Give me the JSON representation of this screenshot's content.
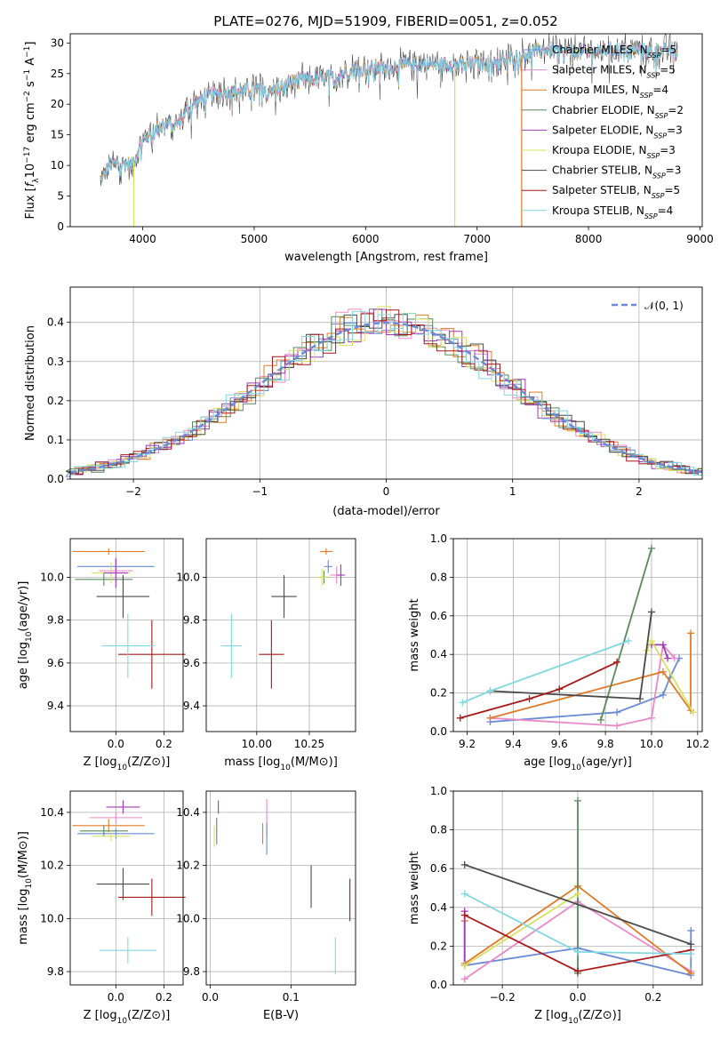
{
  "title": "PLATE=0276, MJD=51909, FIBERID=0051, z=0.052",
  "colors": {
    "Chabrier MILES": "#6a8ad8",
    "Salpeter MILES": "#e98ac8",
    "Kroupa MILES": "#e07b28",
    "Chabrier ELODIE": "#5a8a5a",
    "Salpeter ELODIE": "#a03ab8",
    "Kroupa ELODIE": "#d8e060",
    "Chabrier STELIB": "#4a4a4a",
    "Salpeter STELIB": "#a81818",
    "Kroupa STELIB": "#80d8e0"
  },
  "chart_data": [
    {
      "id": "spectrum",
      "type": "line",
      "xlabel": "wavelength [Angstrom, rest frame]",
      "ylabel": "Flux [f_λ10^-17 erg cm^-2 s^-1 A^-1]",
      "xlim": [
        3350,
        9020
      ],
      "ylim": [
        0,
        31.5
      ],
      "xticks": [
        "4000",
        "5000",
        "6000",
        "7000",
        "8000",
        "9000"
      ],
      "yticks": [
        "0",
        "5",
        "10",
        "15",
        "20",
        "25",
        "30"
      ],
      "x_range": [
        3620,
        8800
      ],
      "legend_position": "top-right",
      "continuum": [
        [
          3620,
          7.5
        ],
        [
          3700,
          10
        ],
        [
          3800,
          10.5
        ],
        [
          3900,
          10
        ],
        [
          4000,
          14
        ],
        [
          4100,
          15.5
        ],
        [
          4200,
          17
        ],
        [
          4300,
          16.5
        ],
        [
          4400,
          19
        ],
        [
          4500,
          20.5
        ],
        [
          4600,
          21.5
        ],
        [
          4800,
          22
        ],
        [
          5000,
          22.5
        ],
        [
          5200,
          22.5
        ],
        [
          5400,
          24
        ],
        [
          5600,
          24
        ],
        [
          5800,
          25
        ],
        [
          6000,
          26
        ],
        [
          6200,
          26
        ],
        [
          6400,
          26.5
        ],
        [
          6600,
          26.5
        ],
        [
          6800,
          26.5
        ],
        [
          7000,
          26.5
        ],
        [
          7200,
          27
        ],
        [
          7400,
          28
        ],
        [
          7600,
          29
        ],
        [
          7800,
          28.5
        ],
        [
          8000,
          28.5
        ],
        [
          8200,
          29
        ],
        [
          8400,
          29
        ],
        [
          8600,
          28.5
        ],
        [
          8800,
          29
        ]
      ],
      "legend": [
        "Chabrier MILES, N_SSP=5",
        "Salpeter MILES, N_SSP=5",
        "Kroupa MILES, N_SSP=4",
        "Chabrier ELODIE, N_SSP=2",
        "Salpeter ELODIE, N_SSP=3",
        "Kroupa ELODIE, N_SSP=3",
        "Chabrier STELIB, N_SSP=3",
        "Salpeter STELIB, N_SSP=5",
        "Kroupa STELIB, N_SSP=4"
      ],
      "legend_prefix": [
        "Chabrier MILES, N",
        "Salpeter MILES, N",
        "Kroupa MILES, N",
        "Chabrier ELODIE, N",
        "Salpeter ELODIE, N",
        "Kroupa ELODIE, N",
        "Chabrier STELIB, N",
        "Salpeter STELIB, N",
        "Kroupa STELIB, N"
      ],
      "legend_sub": "SSP",
      "legend_suffix": [
        "=5",
        "=5",
        "=4",
        "=2",
        "=3",
        "=3",
        "=3",
        "=5",
        "=4"
      ],
      "vlines": [
        {
          "x": 3920,
          "series": "Kroupa ELODIE"
        },
        {
          "x": 6800,
          "series": "Kroupa ELODIE"
        },
        {
          "x": 7400,
          "series": "Kroupa MILES"
        }
      ]
    },
    {
      "id": "residuals",
      "type": "step",
      "xlabel": "(data-model)/error",
      "ylabel": "Normed distribution",
      "xlim": [
        -2.5,
        2.5
      ],
      "ylim": [
        0,
        0.49
      ],
      "xticks": [
        "-2",
        "-1",
        "0",
        "1",
        "2"
      ],
      "yticks": [
        "0.0",
        "0.1",
        "0.2",
        "0.3",
        "0.4"
      ],
      "legend": "𝒩(0, 1)",
      "legend_position": "top-right",
      "bin_width": 0.1,
      "grid": true
    },
    {
      "id": "age-vs-Z",
      "type": "errorbar",
      "xlabel": "Z [log10(Z/Z⊙)]",
      "ylabel": "age  [log10(age/yr)]",
      "xlim": [
        -0.19,
        0.28
      ],
      "ylim": [
        9.28,
        10.18
      ],
      "xticks": [
        "0.0",
        "0.2"
      ],
      "yticks": [
        "9.4",
        "9.6",
        "9.8",
        "10.0"
      ],
      "points": [
        {
          "series": "Kroupa MILES",
          "x": -0.03,
          "y": 10.12,
          "xerr": 0.15,
          "yerr": 0.015
        },
        {
          "series": "Chabrier MILES",
          "x": 0.0,
          "y": 10.05,
          "xerr": 0.16,
          "yerr": 0.03
        },
        {
          "series": "Salpeter MILES",
          "x": 0.0,
          "y": 10.03,
          "xerr": 0.07,
          "yerr": 0.05
        },
        {
          "series": "Chabrier ELODIE",
          "x": -0.05,
          "y": 9.99,
          "xerr": 0.12,
          "yerr": 0.03
        },
        {
          "series": "Kroupa ELODIE",
          "x": -0.02,
          "y": 10.02,
          "xerr": 0.08,
          "yerr": 0.05
        },
        {
          "series": "Salpeter ELODIE",
          "x": 0.0,
          "y": 10.02,
          "xerr": 0.05,
          "yerr": 0.07
        },
        {
          "series": "Chabrier STELIB",
          "x": 0.03,
          "y": 9.91,
          "xerr": 0.11,
          "yerr": 0.1
        },
        {
          "series": "Salpeter STELIB",
          "x": 0.15,
          "y": 9.64,
          "xerr": 0.14,
          "yerr": 0.16
        },
        {
          "series": "Kroupa STELIB",
          "x": 0.05,
          "y": 9.68,
          "xerr": 0.11,
          "yerr": 0.15
        }
      ]
    },
    {
      "id": "age-vs-mass",
      "type": "errorbar",
      "xlabel": "mass [log10(M/M⊙)]",
      "ylabel": "",
      "xlim": [
        9.76,
        10.47
      ],
      "ylim": [
        9.28,
        10.18
      ],
      "xticks": [
        "10.00",
        "10.25"
      ],
      "yticks": [
        "9.4",
        "9.6",
        "9.8",
        "10.0"
      ],
      "points": [
        {
          "series": "Kroupa MILES",
          "x": 10.33,
          "y": 10.12,
          "xerr": 0.03,
          "yerr": 0.015
        },
        {
          "series": "Chabrier MILES",
          "x": 10.34,
          "y": 10.05,
          "xerr": 0.02,
          "yerr": 0.03
        },
        {
          "series": "Salpeter MILES",
          "x": 10.38,
          "y": 10.01,
          "xerr": 0.03,
          "yerr": 0.04
        },
        {
          "series": "Chabrier ELODIE",
          "x": 10.32,
          "y": 10.0,
          "xerr": 0.02,
          "yerr": 0.03
        },
        {
          "series": "Kroupa ELODIE",
          "x": 10.31,
          "y": 10.0,
          "xerr": 0.03,
          "yerr": 0.04
        },
        {
          "series": "Salpeter ELODIE",
          "x": 10.4,
          "y": 10.01,
          "xerr": 0.02,
          "yerr": 0.05
        },
        {
          "series": "Chabrier STELIB",
          "x": 10.13,
          "y": 9.91,
          "xerr": 0.06,
          "yerr": 0.1
        },
        {
          "series": "Salpeter STELIB",
          "x": 10.07,
          "y": 9.64,
          "xerr": 0.06,
          "yerr": 0.16
        },
        {
          "series": "Kroupa STELIB",
          "x": 9.88,
          "y": 9.68,
          "xerr": 0.05,
          "yerr": 0.15
        }
      ]
    },
    {
      "id": "mass-weight-vs-age",
      "type": "line",
      "xlabel": "age  [log10(age/yr)]",
      "ylabel": "mass weight",
      "xlim": [
        9.14,
        10.22
      ],
      "ylim": [
        0,
        1.0
      ],
      "xticks": [
        "9.2",
        "9.4",
        "9.6",
        "9.8",
        "10.0",
        "10.2"
      ],
      "yticks": [
        "0.0",
        "0.2",
        "0.4",
        "0.6",
        "0.8",
        "1.0"
      ],
      "series": [
        {
          "name": "Chabrier MILES",
          "x": [
            9.3,
            9.85,
            10.05,
            10.08,
            10.12
          ],
          "y": [
            0.05,
            0.1,
            0.19,
            0.28,
            0.38
          ]
        },
        {
          "name": "Salpeter MILES",
          "x": [
            9.3,
            9.85,
            10.0,
            10.05,
            10.1
          ],
          "y": [
            0.07,
            0.03,
            0.07,
            0.45,
            0.38
          ]
        },
        {
          "name": "Kroupa MILES",
          "x": [
            9.3,
            10.05,
            10.17,
            10.17
          ],
          "y": [
            0.07,
            0.31,
            0.11,
            0.51
          ]
        },
        {
          "name": "Chabrier ELODIE",
          "x": [
            9.78,
            10.0
          ],
          "y": [
            0.06,
            0.95
          ]
        },
        {
          "name": "Salpeter ELODIE",
          "x": [
            10.0,
            10.05,
            10.07
          ],
          "y": [
            0.45,
            0.45,
            0.38
          ]
        },
        {
          "name": "Kroupa ELODIE",
          "x": [
            9.98,
            10.0,
            10.18
          ],
          "y": [
            0.42,
            0.47,
            0.1
          ]
        },
        {
          "name": "Chabrier STELIB",
          "x": [
            9.3,
            9.95,
            10.0
          ],
          "y": [
            0.21,
            0.17,
            0.62
          ]
        },
        {
          "name": "Salpeter STELIB",
          "x": [
            9.17,
            9.47,
            9.6,
            9.85
          ],
          "y": [
            0.07,
            0.17,
            0.22,
            0.36
          ]
        },
        {
          "name": "Kroupa STELIB",
          "x": [
            9.18,
            9.3,
            9.9
          ],
          "y": [
            0.15,
            0.21,
            0.47
          ]
        }
      ]
    },
    {
      "id": "mass-vs-Z",
      "type": "errorbar",
      "xlabel": "Z [log10(Z/Z⊙)]",
      "ylabel": "mass [log10(M/M⊙)]",
      "xlim": [
        -0.19,
        0.28
      ],
      "ylim": [
        9.75,
        10.48
      ],
      "xticks": [
        "0.0",
        "0.2"
      ],
      "yticks": [
        "9.8",
        "10.0",
        "10.2",
        "10.4"
      ],
      "points": [
        {
          "series": "Salpeter ELODIE",
          "x": 0.03,
          "y": 10.42,
          "xerr": 0.07,
          "yerr": 0.025
        },
        {
          "series": "Salpeter MILES",
          "x": 0.0,
          "y": 10.38,
          "xerr": 0.11,
          "yerr": 0.02
        },
        {
          "series": "Kroupa MILES",
          "x": -0.03,
          "y": 10.35,
          "xerr": 0.15,
          "yerr": 0.025
        },
        {
          "series": "Chabrier MILES",
          "x": 0.0,
          "y": 10.32,
          "xerr": 0.16,
          "yerr": 0.02
        },
        {
          "series": "Chabrier ELODIE",
          "x": -0.05,
          "y": 10.33,
          "xerr": 0.1,
          "yerr": 0.02
        },
        {
          "series": "Kroupa ELODIE",
          "x": -0.02,
          "y": 10.31,
          "xerr": 0.08,
          "yerr": 0.02
        },
        {
          "series": "Chabrier STELIB",
          "x": 0.03,
          "y": 10.13,
          "xerr": 0.11,
          "yerr": 0.06
        },
        {
          "series": "Salpeter STELIB",
          "x": 0.15,
          "y": 10.08,
          "xerr": 0.14,
          "yerr": 0.07
        },
        {
          "series": "Kroupa STELIB",
          "x": 0.05,
          "y": 9.88,
          "xerr": 0.12,
          "yerr": 0.05
        }
      ]
    },
    {
      "id": "mass-vs-ebv",
      "type": "errorbar",
      "xlabel": "E(B-V)",
      "ylabel": "",
      "xlim": [
        -0.005,
        0.18
      ],
      "ylim": [
        9.75,
        10.48
      ],
      "xticks": [
        "0.0",
        "0.1"
      ],
      "yticks": [
        "9.8",
        "10.0",
        "10.2",
        "10.4"
      ],
      "points": [
        {
          "series": "Salpeter ELODIE",
          "x": 0.01,
          "y": 10.42,
          "xerr": 0,
          "yerr": 0.025
        },
        {
          "series": "Salpeter MILES",
          "x": 0.07,
          "y": 10.38,
          "xerr": 0,
          "yerr": 0.07
        },
        {
          "series": "Kroupa MILES",
          "x": 0.065,
          "y": 10.32,
          "xerr": 0,
          "yerr": 0.04
        },
        {
          "series": "Chabrier MILES",
          "x": 0.07,
          "y": 10.3,
          "xerr": 0,
          "yerr": 0.06
        },
        {
          "series": "Chabrier ELODIE",
          "x": 0.008,
          "y": 10.33,
          "xerr": 0,
          "yerr": 0.05
        },
        {
          "series": "Kroupa ELODIE",
          "x": 0.005,
          "y": 10.31,
          "xerr": 0,
          "yerr": 0.04
        },
        {
          "series": "Chabrier STELIB",
          "x": 0.125,
          "y": 10.12,
          "xerr": 0,
          "yerr": 0.08
        },
        {
          "series": "Salpeter STELIB",
          "x": 0.173,
          "y": 10.07,
          "xerr": 0,
          "yerr": 0.08
        },
        {
          "series": "Kroupa STELIB",
          "x": 0.155,
          "y": 9.86,
          "xerr": 0,
          "yerr": 0.07
        }
      ]
    },
    {
      "id": "mass-weight-vs-Z",
      "type": "line",
      "xlabel": "Z [log10(Z/Z⊙)]",
      "ylabel": "mass weight",
      "xlim": [
        -0.33,
        0.33
      ],
      "ylim": [
        0,
        1.0
      ],
      "xticks": [
        "-0.2",
        "0.0",
        "0.2"
      ],
      "yticks": [
        "0.0",
        "0.2",
        "0.4",
        "0.6",
        "0.8",
        "1.0"
      ],
      "series": [
        {
          "name": "Chabrier MILES",
          "x": [
            -0.3,
            0.0,
            0.3,
            0.3
          ],
          "y": [
            0.1,
            0.19,
            0.05,
            0.28
          ]
        },
        {
          "name": "Salpeter MILES",
          "x": [
            -0.3,
            0.0,
            0.3
          ],
          "y": [
            0.03,
            0.43,
            0.07
          ]
        },
        {
          "name": "Kroupa MILES",
          "x": [
            -0.3,
            -0.3,
            0.0,
            0.3
          ],
          "y": [
            0.33,
            0.11,
            0.51,
            0.06
          ]
        },
        {
          "name": "Chabrier ELODIE",
          "x": [
            0.0,
            0.0
          ],
          "y": [
            0.06,
            0.95
          ]
        },
        {
          "name": "Salpeter ELODIE",
          "x": [
            -0.3,
            -0.3
          ],
          "y": [
            0.38,
            0.1
          ]
        },
        {
          "name": "Kroupa ELODIE",
          "x": [
            -0.3,
            0.0
          ],
          "y": [
            0.1,
            0.47
          ]
        },
        {
          "name": "Chabrier STELIB",
          "x": [
            -0.3,
            0.3
          ],
          "y": [
            0.62,
            0.21
          ]
        },
        {
          "name": "Salpeter STELIB",
          "x": [
            -0.3,
            0.0,
            0.3
          ],
          "y": [
            0.36,
            0.07,
            0.18
          ]
        },
        {
          "name": "Kroupa STELIB",
          "x": [
            -0.3,
            0.0,
            0.3
          ],
          "y": [
            0.47,
            0.17,
            0.16
          ]
        }
      ]
    }
  ]
}
